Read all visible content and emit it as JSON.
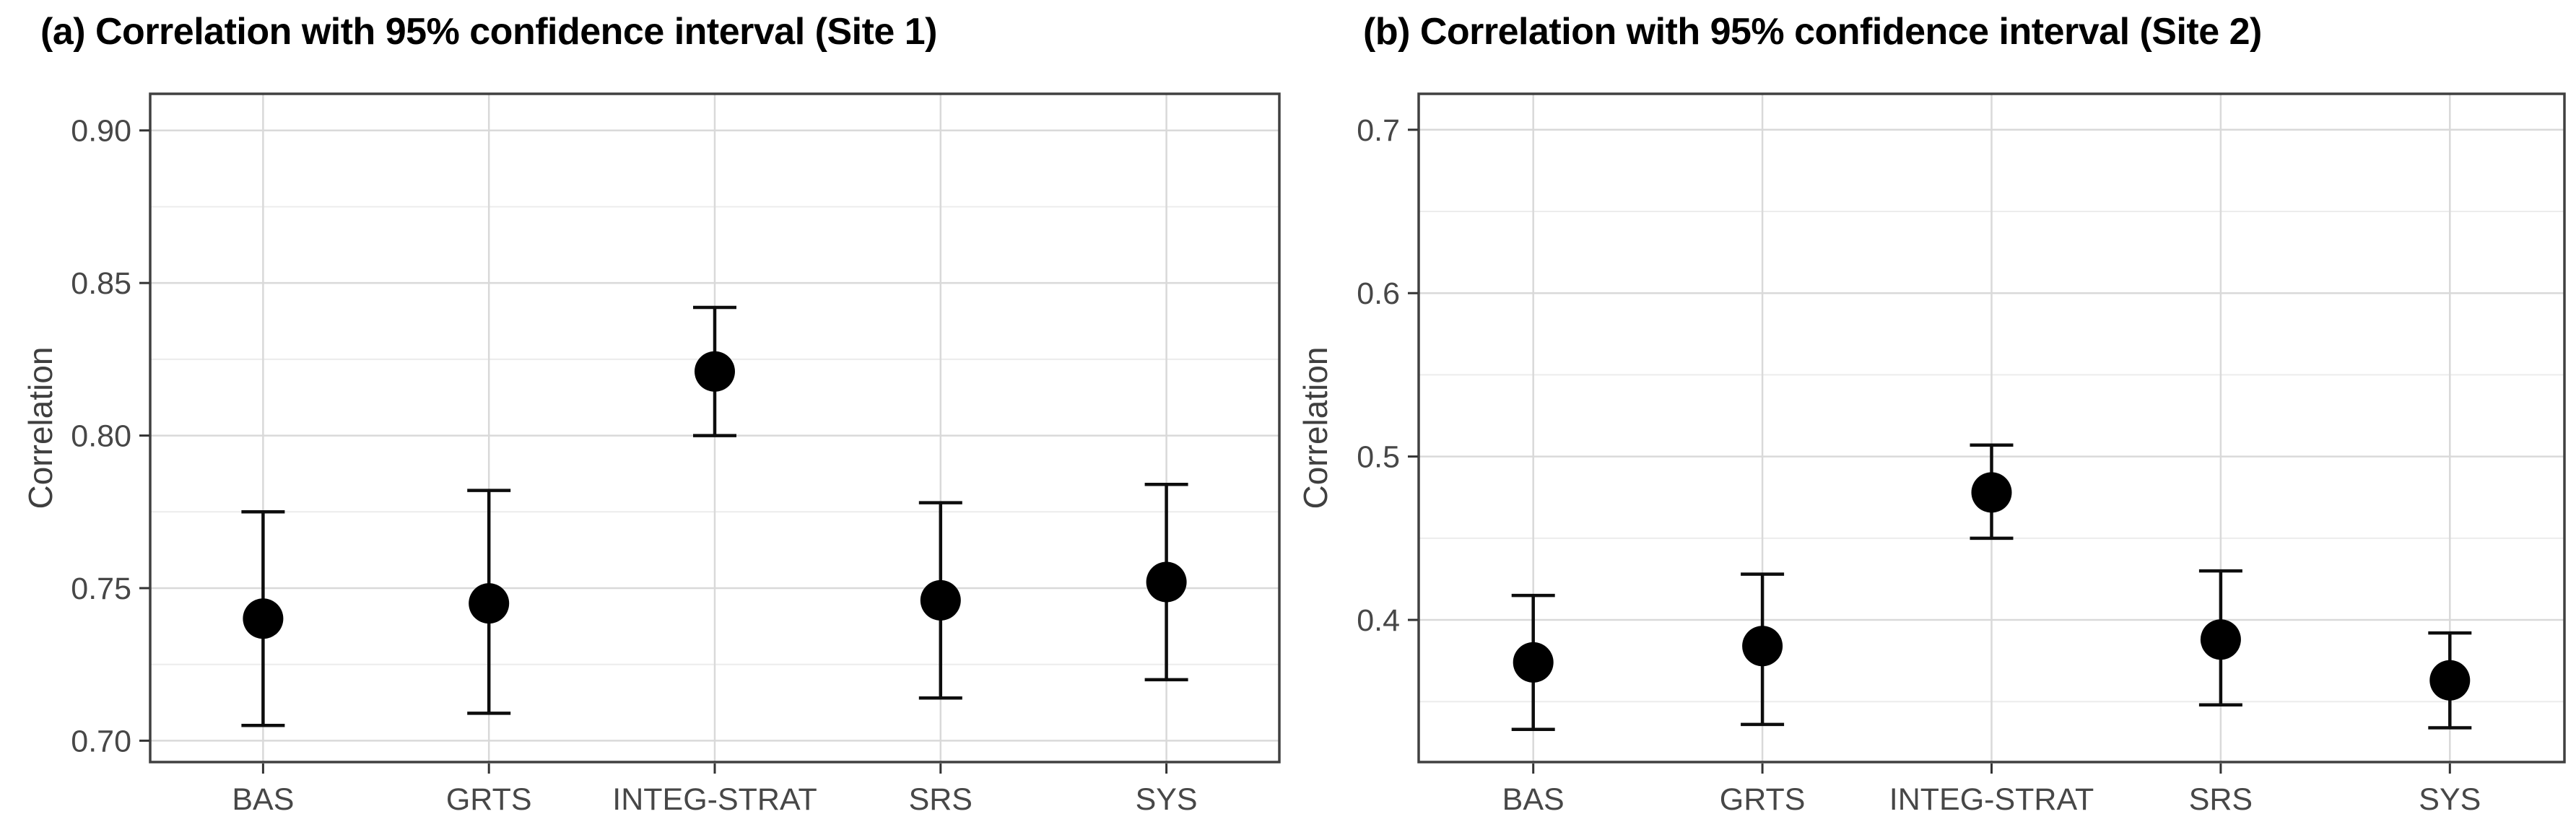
{
  "figure": {
    "background": "#ffffff"
  },
  "colors": {
    "title_text": "#000000",
    "axis_label_text": "#3f3f3f",
    "tick_text": "#474747",
    "tick_mark": "#333333",
    "panel_border": "#404040",
    "panel_fill": "#ffffff",
    "grid_major": "#d9d9d9",
    "grid_minor": "#ececec",
    "point": "#000000",
    "error_bar": "#0d0d0d"
  },
  "chart_data": [
    {
      "type": "scatter",
      "subtype": "pointrange",
      "title": "(a) Correlation with 95% confidence interval (Site 1)",
      "ylabel": "Correlation",
      "xlabel": "",
      "categories": [
        "BAS",
        "GRTS",
        "INTEG-STRAT",
        "SRS",
        "SYS"
      ],
      "values": [
        0.74,
        0.745,
        0.821,
        0.746,
        0.752
      ],
      "ci_low": [
        0.705,
        0.709,
        0.8,
        0.714,
        0.72
      ],
      "ci_high": [
        0.775,
        0.782,
        0.842,
        0.778,
        0.784
      ],
      "yticks": [
        0.7,
        0.75,
        0.8,
        0.85,
        0.9
      ],
      "ytick_labels": [
        "0.70",
        "0.75",
        "0.80",
        "0.85",
        "0.90"
      ],
      "minor_ticks": [
        0.725,
        0.775,
        0.825,
        0.875
      ],
      "ylim": [
        0.693,
        0.912
      ],
      "grid": true,
      "legend": false
    },
    {
      "type": "scatter",
      "subtype": "pointrange",
      "title": "(b) Correlation with 95% confidence interval (Site 2)",
      "ylabel": "Correlation",
      "xlabel": "",
      "categories": [
        "BAS",
        "GRTS",
        "INTEG-STRAT",
        "SRS",
        "SYS"
      ],
      "values": [
        0.374,
        0.384,
        0.478,
        0.388,
        0.363
      ],
      "ci_low": [
        0.333,
        0.336,
        0.45,
        0.348,
        0.334
      ],
      "ci_high": [
        0.415,
        0.428,
        0.507,
        0.43,
        0.392
      ],
      "yticks": [
        0.4,
        0.5,
        0.6,
        0.7
      ],
      "ytick_labels": [
        "0.4",
        "0.5",
        "0.6",
        "0.7"
      ],
      "minor_ticks": [
        0.35,
        0.45,
        0.55,
        0.65
      ],
      "ylim": [
        0.313,
        0.722
      ],
      "grid": true,
      "legend": false
    }
  ]
}
